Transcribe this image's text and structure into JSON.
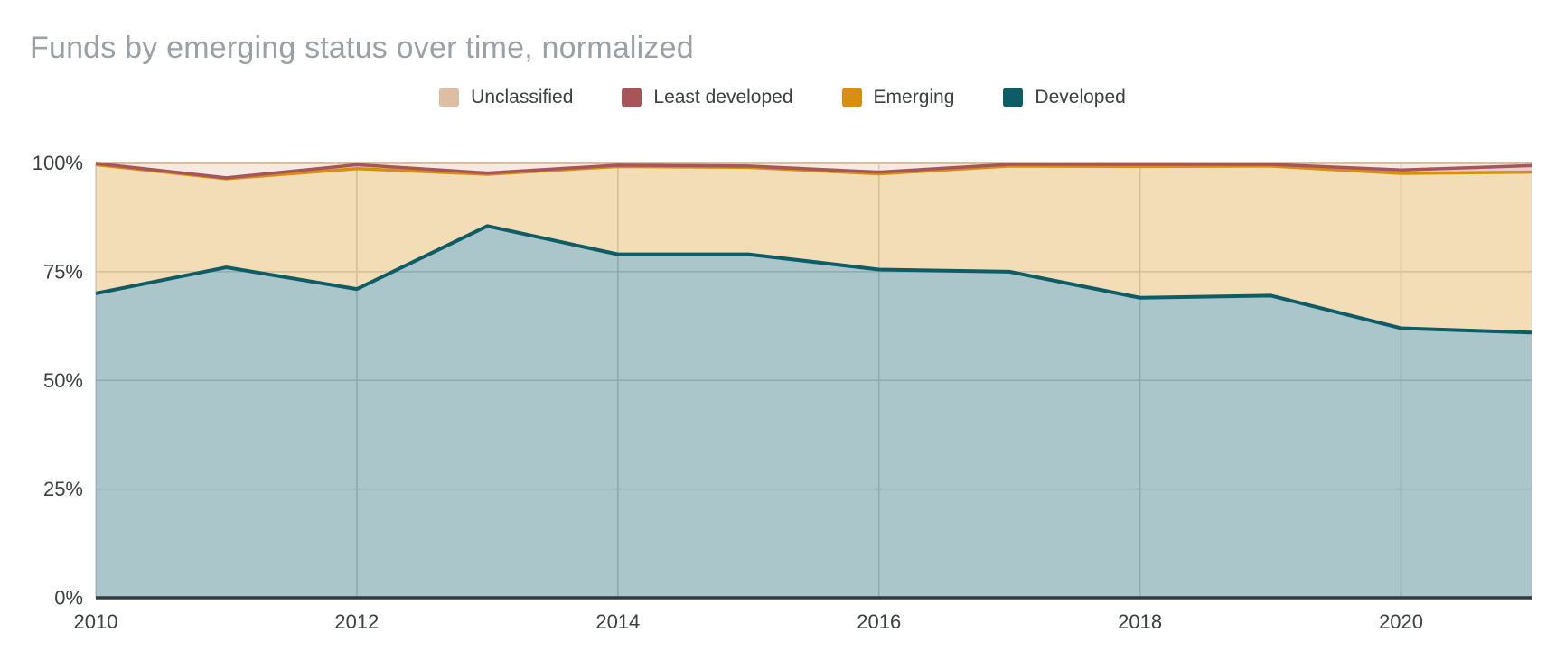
{
  "title": "Funds by emerging status over time, normalized",
  "colors": {
    "background": "#FFFFFF",
    "title_text": "#99A1A6",
    "axis_text": "#3C4043",
    "legend_text": "#3C4043",
    "gridline": "#D2D5D8",
    "axis_line": "#2F3B42"
  },
  "legend": {
    "position": "top",
    "items": [
      {
        "label": "Unclassified",
        "color": "#DCBEA2"
      },
      {
        "label": "Least developed",
        "color": "#A85559"
      },
      {
        "label": "Emerging",
        "color": "#D68F10"
      },
      {
        "label": "Developed",
        "color": "#0D5C66"
      }
    ]
  },
  "chart_data": {
    "type": "area",
    "stacked": true,
    "normalized": true,
    "title": "Funds by emerging status over time, normalized",
    "xlabel": "",
    "ylabel": "",
    "ylim": [
      0,
      100
    ],
    "grid": true,
    "legend_position": "top",
    "x": [
      2010,
      2011,
      2012,
      2013,
      2014,
      2015,
      2016,
      2017,
      2018,
      2019,
      2020,
      2021
    ],
    "x_ticks": [
      "2010",
      "2012",
      "2014",
      "2016",
      "2018",
      "2020"
    ],
    "y_ticks": [
      {
        "label": "0%",
        "value": 0
      },
      {
        "label": "25%",
        "value": 25
      },
      {
        "label": "50%",
        "value": 50
      },
      {
        "label": "75%",
        "value": 75
      },
      {
        "label": "100%",
        "value": 100
      }
    ],
    "series": [
      {
        "name": "Developed",
        "line_color": "#0D5C66",
        "fill_color": "rgba(13,92,102,0.35)",
        "values": [
          70,
          76,
          71,
          85.5,
          79,
          79,
          75.5,
          75,
          69,
          69.5,
          62,
          61
        ]
      },
      {
        "name": "Emerging",
        "line_color": "#D68F10",
        "fill_color": "rgba(214,143,16,0.30)",
        "values": [
          29.6,
          20.4,
          27.7,
          11.9,
          20.2,
          20,
          22,
          24.3,
          30.2,
          29.8,
          35.6,
          36.9
        ]
      },
      {
        "name": "Least developed",
        "line_color": "#A85559",
        "fill_color": "rgba(168,84,88,0.28)",
        "values": [
          0.3,
          0.2,
          0.9,
          0.3,
          0.3,
          0.3,
          0.4,
          0.4,
          0.5,
          0.4,
          0.8,
          1.5
        ]
      },
      {
        "name": "Unclassified",
        "line_color": "#DCBEA2",
        "fill_color": "rgba(220,190,162,0.32)",
        "values": [
          0.1,
          3.4,
          0.4,
          2.3,
          0.5,
          0.7,
          2.1,
          0.3,
          0.3,
          0.3,
          1.6,
          0.6
        ]
      }
    ]
  }
}
